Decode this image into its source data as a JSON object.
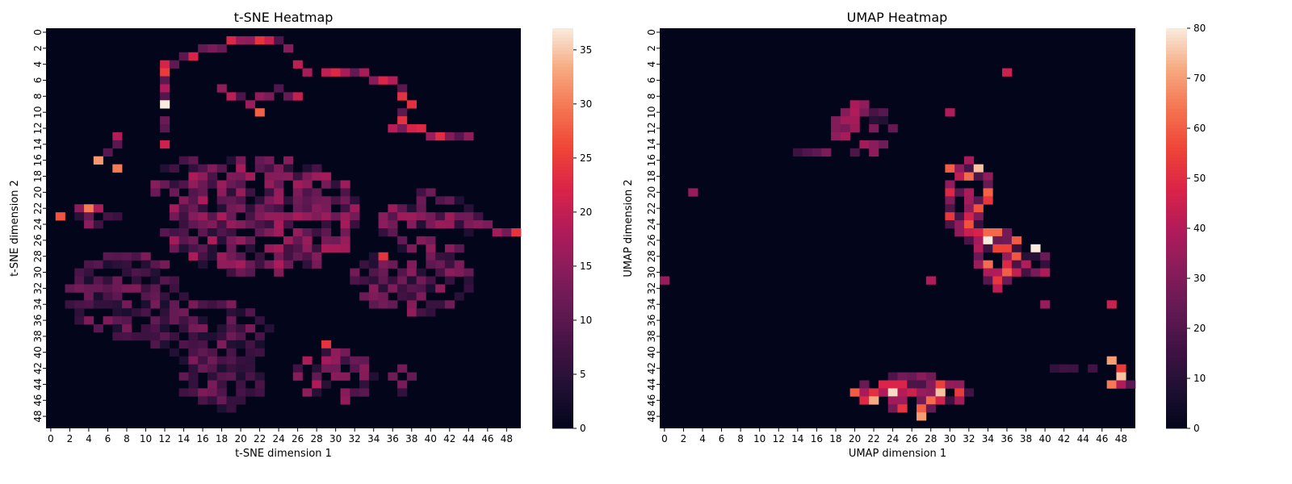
{
  "chart_data": [
    {
      "type": "heatmap",
      "title": "t-SNE Heatmap",
      "xlabel": "t-SNE dimension 1",
      "ylabel": "t-SNE dimension 2",
      "grid_size": [
        50,
        50
      ],
      "xticks": [
        "0",
        "2",
        "4",
        "6",
        "8",
        "10",
        "12",
        "14",
        "16",
        "18",
        "20",
        "22",
        "24",
        "26",
        "28",
        "30",
        "32",
        "34",
        "36",
        "38",
        "40",
        "42",
        "44",
        "46",
        "48"
      ],
      "yticks": [
        "0",
        "2",
        "4",
        "6",
        "8",
        "10",
        "12",
        "14",
        "16",
        "18",
        "20",
        "22",
        "24",
        "26",
        "28",
        "30",
        "32",
        "34",
        "36",
        "38",
        "40",
        "42",
        "44",
        "46",
        "48"
      ],
      "colorbar": {
        "min": 0,
        "max": 37,
        "ticks": [
          "0",
          "5",
          "10",
          "15",
          "20",
          "25",
          "30",
          "35"
        ]
      },
      "colormap": "rocket",
      "features": [
        {
          "kind": "blob",
          "cx": 22,
          "cy": 23,
          "rx": 10,
          "ry": 7,
          "value": 13,
          "density": 0.75
        },
        {
          "kind": "blob",
          "cx": 40,
          "cy": 24,
          "rx": 5,
          "ry": 4,
          "value": 12,
          "density": 0.7
        },
        {
          "kind": "blob",
          "cx": 38,
          "cy": 31,
          "rx": 6,
          "ry": 4,
          "value": 11,
          "density": 0.7
        },
        {
          "kind": "blob",
          "cx": 8,
          "cy": 33,
          "rx": 6,
          "ry": 5,
          "value": 10,
          "density": 0.75
        },
        {
          "kind": "blob",
          "cx": 17,
          "cy": 38,
          "rx": 6,
          "ry": 4,
          "value": 10,
          "density": 0.7
        },
        {
          "kind": "blob",
          "cx": 18,
          "cy": 44,
          "rx": 4,
          "ry": 3,
          "value": 10,
          "density": 0.7
        },
        {
          "kind": "blob",
          "cx": 30,
          "cy": 43,
          "rx": 4,
          "ry": 3,
          "value": 13,
          "density": 0.7
        },
        {
          "kind": "blob",
          "cx": 14,
          "cy": 19,
          "rx": 3,
          "ry": 3,
          "value": 12,
          "density": 0.6
        },
        {
          "kind": "blob",
          "cx": 37,
          "cy": 43,
          "rx": 1,
          "ry": 2,
          "value": 12,
          "density": 0.6
        },
        {
          "kind": "blob",
          "cx": 4,
          "cy": 23,
          "rx": 3,
          "ry": 1,
          "value": 14,
          "density": 0.6
        },
        {
          "kind": "line",
          "points": [
            [
              12,
              15
            ],
            [
              12,
              4
            ],
            [
              17,
              2
            ],
            [
              20,
              1
            ],
            [
              24,
              1
            ],
            [
              27,
              5
            ],
            [
              31,
              5
            ],
            [
              36,
              6
            ],
            [
              38,
              9
            ],
            [
              36,
              12
            ],
            [
              44,
              13
            ]
          ],
          "value": 17,
          "thickness": 1
        },
        {
          "kind": "line",
          "points": [
            [
              45,
              24
            ],
            [
              49,
              25
            ]
          ],
          "value": 14,
          "thickness": 1
        },
        {
          "kind": "line",
          "points": [
            [
              18,
              7
            ],
            [
              21,
              9
            ],
            [
              24,
              7
            ],
            [
              26,
              8
            ]
          ],
          "value": 15,
          "thickness": 1
        },
        {
          "kind": "line",
          "points": [
            [
              8,
              12
            ],
            [
              5,
              16
            ]
          ],
          "value": 14,
          "thickness": 1
        },
        {
          "kind": "spot",
          "x": 12,
          "y": 9,
          "value": 37
        },
        {
          "kind": "spot",
          "x": 5,
          "y": 16,
          "value": 32
        },
        {
          "kind": "spot",
          "x": 7,
          "y": 17,
          "value": 30
        },
        {
          "kind": "spot",
          "x": 1,
          "y": 23,
          "value": 27
        },
        {
          "kind": "spot",
          "x": 4,
          "y": 22,
          "value": 30
        },
        {
          "kind": "spot",
          "x": 22,
          "y": 10,
          "value": 28
        },
        {
          "kind": "spot",
          "x": 49,
          "y": 25,
          "value": 24
        },
        {
          "kind": "spot",
          "x": 12,
          "y": 5,
          "value": 25
        },
        {
          "kind": "spot",
          "x": 29,
          "y": 39,
          "value": 24
        },
        {
          "kind": "spot",
          "x": 35,
          "y": 28,
          "value": 24
        },
        {
          "kind": "spot",
          "x": 22,
          "y": 1,
          "value": 24
        }
      ]
    },
    {
      "type": "heatmap",
      "title": "UMAP Heatmap",
      "xlabel": "UMAP dimension 1",
      "ylabel": "UMAP dimension 2",
      "grid_size": [
        50,
        50
      ],
      "xticks": [
        "0",
        "2",
        "4",
        "6",
        "8",
        "10",
        "12",
        "14",
        "16",
        "18",
        "20",
        "22",
        "24",
        "26",
        "28",
        "30",
        "32",
        "34",
        "36",
        "38",
        "40",
        "42",
        "44",
        "46",
        "48"
      ],
      "yticks": [
        "0",
        "2",
        "4",
        "6",
        "8",
        "10",
        "12",
        "14",
        "16",
        "18",
        "20",
        "22",
        "24",
        "26",
        "28",
        "30",
        "32",
        "34",
        "36",
        "38",
        "40",
        "42",
        "44",
        "46",
        "48"
      ],
      "colorbar": {
        "min": 0,
        "max": 80,
        "ticks": [
          "0",
          "10",
          "20",
          "30",
          "40",
          "50",
          "60",
          "70",
          "80"
        ]
      },
      "colormap": "rocket",
      "features": [
        {
          "kind": "blob",
          "cx": 32,
          "cy": 21,
          "rx": 2.5,
          "ry": 5,
          "value": 45,
          "density": 0.85
        },
        {
          "kind": "blob",
          "cx": 35,
          "cy": 28,
          "rx": 2.5,
          "ry": 4,
          "value": 45,
          "density": 0.85
        },
        {
          "kind": "blob",
          "cx": 39,
          "cy": 29,
          "rx": 1.5,
          "ry": 2,
          "value": 30,
          "density": 0.6
        },
        {
          "kind": "blob",
          "cx": 26,
          "cy": 45,
          "rx": 6,
          "ry": 2,
          "value": 45,
          "density": 0.9
        },
        {
          "kind": "blob",
          "cx": 21,
          "cy": 12,
          "rx": 3,
          "ry": 3,
          "value": 28,
          "density": 0.5
        },
        {
          "kind": "blob",
          "cx": 48,
          "cy": 44,
          "rx": 1,
          "ry": 2,
          "value": 55,
          "density": 0.7
        },
        {
          "kind": "line",
          "points": [
            [
              14,
              15
            ],
            [
              17,
              15
            ]
          ],
          "value": 25,
          "thickness": 1
        },
        {
          "kind": "line",
          "points": [
            [
              41,
              42
            ],
            [
              45,
              42
            ]
          ],
          "value": 25,
          "thickness": 1
        },
        {
          "kind": "spot",
          "x": 33,
          "y": 17,
          "value": 75
        },
        {
          "kind": "spot",
          "x": 34,
          "y": 26,
          "value": 80
        },
        {
          "kind": "spot",
          "x": 39,
          "y": 27,
          "value": 80
        },
        {
          "kind": "spot",
          "x": 24,
          "y": 45,
          "value": 78
        },
        {
          "kind": "spot",
          "x": 29,
          "y": 45,
          "value": 75
        },
        {
          "kind": "spot",
          "x": 27,
          "y": 48,
          "value": 70
        },
        {
          "kind": "spot",
          "x": 48,
          "y": 43,
          "value": 75
        },
        {
          "kind": "spot",
          "x": 47,
          "y": 41,
          "value": 70
        },
        {
          "kind": "spot",
          "x": 22,
          "y": 46,
          "value": 72
        },
        {
          "kind": "spot",
          "x": 30,
          "y": 17,
          "value": 60
        },
        {
          "kind": "spot",
          "x": 36,
          "y": 30,
          "value": 60
        },
        {
          "kind": "spot",
          "x": 3,
          "y": 20,
          "value": 35
        },
        {
          "kind": "spot",
          "x": 18,
          "y": 11,
          "value": 30
        },
        {
          "kind": "spot",
          "x": 0,
          "y": 31,
          "value": 35
        },
        {
          "kind": "spot",
          "x": 30,
          "y": 10,
          "value": 40
        },
        {
          "kind": "spot",
          "x": 36,
          "y": 5,
          "value": 45
        },
        {
          "kind": "spot",
          "x": 20,
          "y": 10,
          "value": 40
        },
        {
          "kind": "spot",
          "x": 40,
          "y": 34,
          "value": 35
        },
        {
          "kind": "spot",
          "x": 47,
          "y": 34,
          "value": 45
        },
        {
          "kind": "spot",
          "x": 28,
          "y": 31,
          "value": 40
        }
      ]
    }
  ]
}
